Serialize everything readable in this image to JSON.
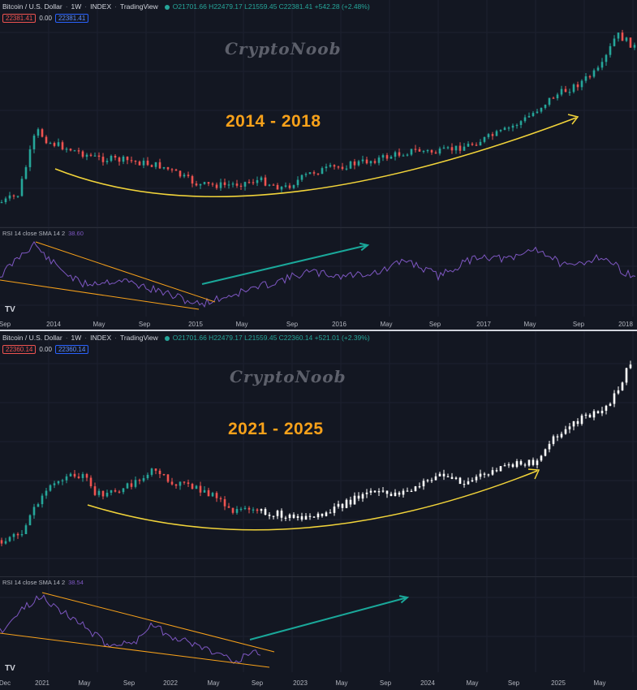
{
  "top": {
    "header": {
      "symbol": "Bitcoin / U.S. Dollar",
      "interval": "1W",
      "exchange": "INDEX",
      "source": "TradingView",
      "ohlc": "O21701.66 H22479.17 L21559.45 C22381.41 +542.28 (+2.48%)"
    },
    "badges": {
      "price": "22381.41",
      "zero": "0.00",
      "price2": "22381.41"
    },
    "watermark": "CryptoNoob",
    "range_label": "2014 - 2018",
    "rsi_label": {
      "text": "RSI 14 close SMA 14 2",
      "value": "38.60"
    },
    "x_ticks": [
      "Sep",
      "2014",
      "May",
      "Sep",
      "2015",
      "May",
      "Sep",
      "2016",
      "May",
      "Sep",
      "2017",
      "May",
      "Sep",
      "2018"
    ]
  },
  "bottom": {
    "header": {
      "symbol": "Bitcoin / U.S. Dollar",
      "interval": "1W",
      "exchange": "INDEX",
      "source": "TradingView",
      "ohlc": "O21701.66 H22479.17 L21559.45 C22360.14 +521.01 (+2.39%)"
    },
    "badges": {
      "price": "22360.14",
      "zero": "0.00",
      "price2": "22360.14"
    },
    "watermark": "CryptoNoob",
    "range_label": "2021 - 2025",
    "rsi_label": {
      "text": "RSI 14 close SMA 14 2",
      "value": "38.54"
    },
    "x_ticks": [
      "Dec",
      "2021",
      "May",
      "Sep",
      "2022",
      "May",
      "Sep",
      "2023",
      "May",
      "Sep",
      "2024",
      "May",
      "Sep",
      "2025",
      "May"
    ]
  },
  "colors": {
    "background": "#131722",
    "up_candle": "#26a69a",
    "down_candle": "#ef5350",
    "projected_candle": "#ffffff",
    "curve": "#f2d43a",
    "rsi_line": "#7e57c2",
    "trendline": "#f7a11a",
    "arrow": "#1aa89a",
    "label": "#f7a11a"
  },
  "chart_data": [
    {
      "type": "candlestick",
      "title": "Bitcoin / U.S. Dollar 1W INDEX",
      "period_label": "2014 - 2018",
      "x_range": [
        "2013-09",
        "2018-01"
      ],
      "y_scale": "log",
      "legend": "top-left",
      "annotations": [
        "rounded bottom curve 2014-2017",
        "RSI falling wedge during 2014",
        "RSI breakout arrow 2015"
      ]
    },
    {
      "type": "candlestick",
      "title": "Bitcoin / U.S. Dollar 1W INDEX",
      "period_label": "2021 - 2025",
      "x_range": [
        "2020-12",
        "2025-08"
      ],
      "y_scale": "log",
      "legend": "top-left",
      "annotations": [
        "rounded bottom curve 2021-2024",
        "projected white candles from late 2022",
        "RSI falling wedge during 2022",
        "RSI breakout arrow"
      ]
    }
  ]
}
